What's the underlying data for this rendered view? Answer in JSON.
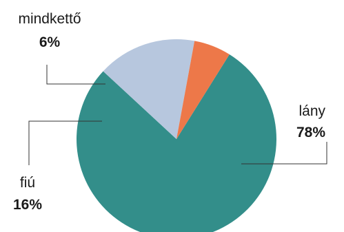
{
  "chart_data": {
    "type": "pie",
    "slices": [
      {
        "label": "lány",
        "value": 78,
        "value_label": "78%",
        "color": "#338e8a"
      },
      {
        "label": "fiú",
        "value": 16,
        "value_label": "16%",
        "color": "#b7c7de"
      },
      {
        "label": "mindkettő",
        "value": 6,
        "value_label": "6%",
        "color": "#ed7849"
      }
    ],
    "start_angle_deg": 32,
    "direction": "clockwise",
    "leader_line_color": "#333333"
  }
}
